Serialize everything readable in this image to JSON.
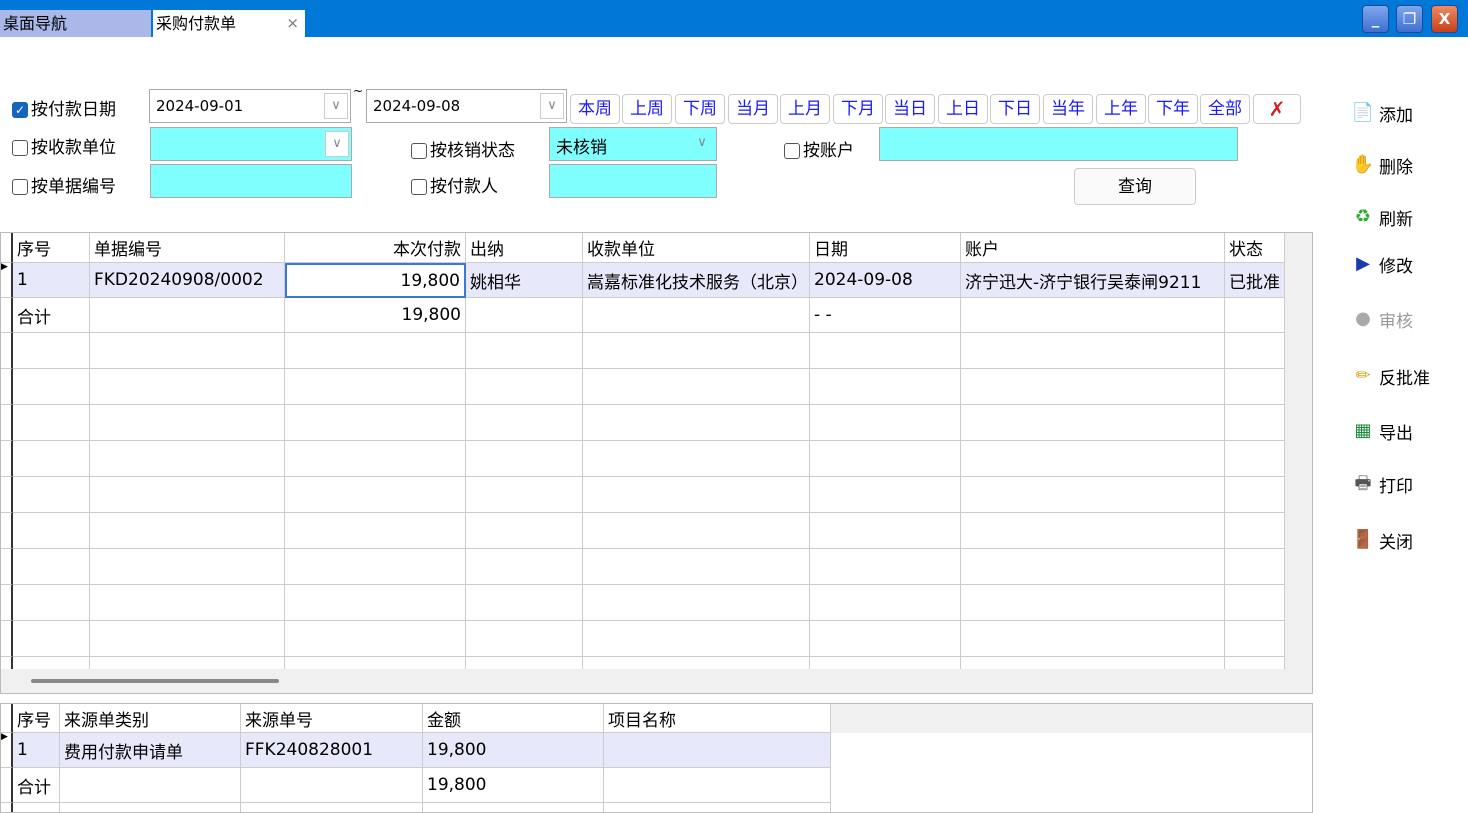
{
  "tabs": [
    {
      "label": "桌面导航"
    },
    {
      "label": "采购付款单",
      "close": "×"
    }
  ],
  "window_buttons": {
    "minimize": "_",
    "restore": "❐",
    "close": "X"
  },
  "filters": {
    "by_pay_date": {
      "label": "按付款日期",
      "checked": true,
      "from": "2024-09-01",
      "to": "2024-09-08",
      "separator": "~"
    },
    "by_payee": {
      "label": "按收款单位",
      "checked": false,
      "value": ""
    },
    "by_doc_no": {
      "label": "按单据编号",
      "checked": false,
      "value": ""
    },
    "by_writeoff": {
      "label": "按核销状态",
      "checked": false,
      "value": "未核销"
    },
    "by_payer": {
      "label": "按付款人",
      "checked": false,
      "value": ""
    },
    "by_account": {
      "label": "按账户",
      "checked": false,
      "value": ""
    },
    "quick_ranges": [
      "本周",
      "上周",
      "下周",
      "当月",
      "上月",
      "下月",
      "当日",
      "上日",
      "下日",
      "当年",
      "上年",
      "下年",
      "全部"
    ],
    "search_label": "查询"
  },
  "sidebar": [
    {
      "label": "添加",
      "icon": "new-document-icon",
      "enabled": true
    },
    {
      "label": "删除",
      "icon": "delete-hand-icon",
      "enabled": true
    },
    {
      "label": "刷新",
      "icon": "refresh-icon",
      "enabled": true
    },
    {
      "label": "修改",
      "icon": "edit-icon",
      "enabled": true
    },
    {
      "label": "审核",
      "icon": "approve-icon",
      "enabled": false
    },
    {
      "label": "反批准",
      "icon": "pencil-icon",
      "enabled": true
    },
    {
      "label": "导出",
      "icon": "excel-icon",
      "enabled": true
    },
    {
      "label": "打印",
      "icon": "printer-icon",
      "enabled": true
    },
    {
      "label": "关闭",
      "icon": "exit-door-icon",
      "enabled": true
    }
  ],
  "main_grid": {
    "columns": [
      "序号",
      "单据编号",
      "本次付款",
      "出纳",
      "收款单位",
      "日期",
      "账户",
      "状态"
    ],
    "rows": [
      [
        "1",
        "FKD20240908/0002",
        "19,800",
        "姚相华",
        "嵩嘉标准化技术服务（北京）",
        "2024-09-08",
        "济宁迅大-济宁银行吴泰闸9211",
        "已批准"
      ]
    ],
    "total": [
      "合计",
      "",
      "19,800",
      "",
      "",
      "- -",
      "",
      ""
    ]
  },
  "detail_grid": {
    "columns": [
      "序号",
      "来源单类别",
      "来源单号",
      "金额",
      "项目名称"
    ],
    "rows": [
      [
        "1",
        "费用付款申请单",
        "FFK240828001",
        "19,800",
        ""
      ]
    ],
    "total": [
      "合计",
      "",
      "",
      "19,800",
      ""
    ]
  }
}
